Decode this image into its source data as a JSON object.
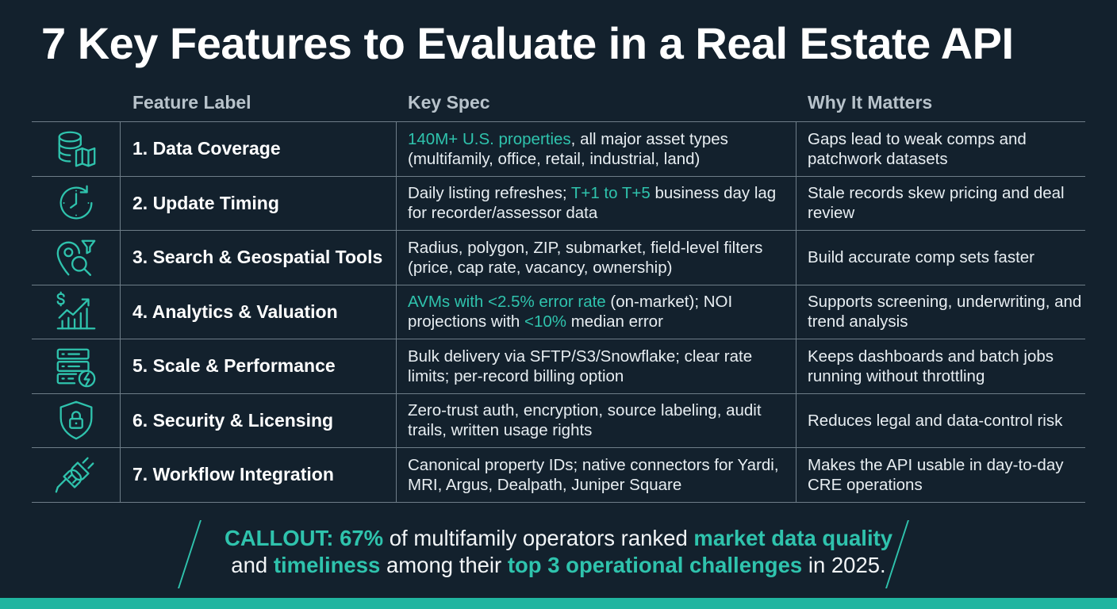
{
  "title": "7 Key Features to Evaluate in a Real Estate API",
  "columns": {
    "feature": "Feature Label",
    "spec": "Key Spec",
    "why": "Why It Matters"
  },
  "rows": [
    {
      "icon": "database-map-icon",
      "label": "1. Data Coverage",
      "spec": [
        {
          "t": "140M+ U.S. properties",
          "hl": true
        },
        {
          "t": ", all major asset types (multifamily, office, retail, industrial, land)",
          "hl": false
        }
      ],
      "why": "Gaps lead to weak comps and patchwork datasets"
    },
    {
      "icon": "clock-refresh-icon",
      "label": "2. Update Timing",
      "spec": [
        {
          "t": "Daily listing refreshes; ",
          "hl": false
        },
        {
          "t": "T+1 to T+5",
          "hl": true
        },
        {
          "t": " business day lag for recorder/assessor data",
          "hl": false
        }
      ],
      "why": "Stale records skew pricing and deal review"
    },
    {
      "icon": "map-pin-search-icon",
      "label": "3. Search & Geospatial Tools",
      "spec": [
        {
          "t": "Radius, polygon, ZIP, submarket, field-level filters (price, cap rate, vacancy, ownership)",
          "hl": false
        }
      ],
      "why": "Build accurate comp sets faster"
    },
    {
      "icon": "analytics-chart-icon",
      "label": "4. Analytics & Valuation",
      "spec": [
        {
          "t": "AVMs with <2.5% error rate",
          "hl": true
        },
        {
          "t": " (on-market); NOI projections with ",
          "hl": false
        },
        {
          "t": "<10%",
          "hl": true
        },
        {
          "t": " median error",
          "hl": false
        }
      ],
      "why": "Supports screening, underwriting, and trend analysis"
    },
    {
      "icon": "server-bolt-icon",
      "label": "5. Scale & Performance",
      "spec": [
        {
          "t": "Bulk delivery via SFTP/S3/Snowflake; clear rate limits; per-record billing option",
          "hl": false
        }
      ],
      "why": "Keeps dashboards and batch jobs running without throttling"
    },
    {
      "icon": "shield-lock-icon",
      "label": "6. Security & Licensing",
      "spec": [
        {
          "t": "Zero-trust auth, encryption, source labeling, audit trails, written usage rights",
          "hl": false
        }
      ],
      "why": "Reduces legal and data-control risk"
    },
    {
      "icon": "plug-connector-icon",
      "label": "7. Workflow Integration",
      "spec": [
        {
          "t": "Canonical property IDs; native connectors for Yardi, MRI, Argus, Dealpath, Juniper Square",
          "hl": false
        }
      ],
      "why": "Makes the API usable in day-to-day CRE operations"
    }
  ],
  "callout": [
    {
      "t": "CALLOUT: 67%",
      "hl": true
    },
    {
      "t": " of multifamily operators ranked ",
      "hl": false
    },
    {
      "t": "market data quality",
      "hl": true
    },
    {
      "t": " and ",
      "hl": false
    },
    {
      "t": "timeliness",
      "hl": true
    },
    {
      "t": " among their ",
      "hl": false
    },
    {
      "t": "top 3 operational challenges",
      "hl": true
    },
    {
      "t": " in 2025.",
      "hl": false
    }
  ],
  "colors": {
    "background": "#13212d",
    "accent": "#2fc3ad",
    "grid": "#6e7d88"
  }
}
